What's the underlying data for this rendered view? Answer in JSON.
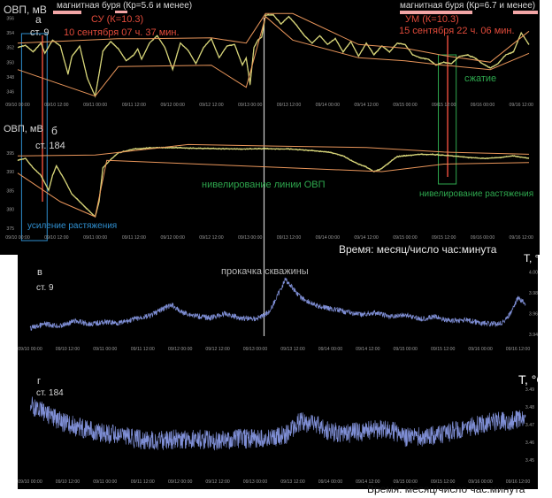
{
  "colors": {
    "background": "#000000",
    "orp_line": "#d8d67a",
    "temp_line": "#7f8fd6",
    "envelope": "#e8955a",
    "annotation_red": "#e04a3a",
    "annotation_green": "#2ea84e",
    "annotation_blue": "#2f8fd0",
    "storm_bar": "#f2a6a6",
    "label_light": "#d8d8d8",
    "tick_gray": "#9a9a9a"
  },
  "x_ticks": [
    "09/10 00:00",
    "09/10 12:00",
    "09/11 00:00",
    "09/11 12:00",
    "09/12 00:00",
    "09/12 12:00",
    "09/13 00:00",
    "09/13 12:00",
    "09/14 00:00",
    "09/14 12:00",
    "09/15 00:00",
    "09/15 12:00",
    "09/16 00:00",
    "09/16 12:00"
  ],
  "x_ticks_c": [
    "09/10 00:00",
    "09/10 12:00",
    "09/11 00:00",
    "09/11 12:00",
    "09/12 00:00",
    "09/12 12:00",
    "09/13 00:00",
    "09/13 12:00",
    "09/14 00:00",
    "09/14 12:00",
    "09/15 00:00",
    "09/15 12:00",
    "09/16 00:00",
    "09/16 12:00"
  ],
  "x_ticks_d": [
    "09/10 00:00",
    "09/10 12:00",
    "09/11 00:00",
    "09/11 12:00",
    "09/12 00:00",
    "09/12 12:00",
    "09/13 00:00",
    "09/13 12:00",
    "09/14 00:00",
    "09/14 12:00",
    "09/15 00:00",
    "09/15 12:00",
    "09/16 00:00",
    "09/16 12:00"
  ],
  "time_axis_label": "Время: месяц/число час:минута",
  "chart_data": [
    {
      "type": "line",
      "panel_letter": "а",
      "station": "ст. 9",
      "ylabel": "ОВП, мВ",
      "y_ticks": [
        346,
        348,
        350,
        352,
        354,
        356
      ],
      "ylim": [
        345,
        357
      ],
      "xlim": [
        0,
        6.6
      ],
      "series": [
        {
          "role": "data",
          "x": [
            0,
            0.1,
            0.2,
            0.3,
            0.35,
            0.45,
            0.55,
            0.65,
            0.7,
            0.8,
            0.9,
            1.0,
            1.05,
            1.1,
            1.2,
            1.3,
            1.4,
            1.5,
            1.55,
            1.6,
            1.7,
            1.8,
            1.9,
            2.0,
            2.05,
            2.1,
            2.2,
            2.3,
            2.4,
            2.5,
            2.6,
            2.7,
            2.8,
            2.9,
            2.95,
            3.0,
            3.05,
            3.1,
            3.15,
            3.2,
            3.3,
            3.4,
            3.5,
            3.6,
            3.7,
            3.8,
            3.9,
            4.0,
            4.1,
            4.2,
            4.3,
            4.4,
            4.5,
            4.6,
            4.7,
            4.8,
            4.9,
            5.0,
            5.1,
            5.2,
            5.3,
            5.4,
            5.5,
            5.6,
            5.7,
            5.8,
            5.9,
            6.0,
            6.1,
            6.2,
            6.3,
            6.4,
            6.5,
            6.6
          ],
          "y": [
            352.0,
            352.3,
            351.4,
            352.6,
            351.2,
            353.0,
            352.2,
            348.4,
            350.8,
            352.2,
            347.8,
            345.4,
            348.4,
            351.5,
            352.8,
            351.8,
            350.2,
            351.0,
            351.8,
            350.4,
            352.6,
            353.6,
            352.0,
            349.0,
            350.8,
            352.6,
            351.6,
            349.8,
            352.0,
            353.2,
            350.6,
            352.2,
            352.4,
            349.6,
            350.6,
            347.0,
            352.0,
            353.0,
            353.4,
            356.4,
            356.4,
            355.2,
            356.2,
            355.0,
            353.6,
            352.6,
            353.6,
            352.4,
            353.2,
            351.4,
            352.8,
            350.8,
            352.6,
            351.0,
            352.2,
            351.4,
            352.6,
            352.4,
            351.0,
            350.6,
            350.4,
            349.6,
            350.0,
            349.8,
            350.8,
            351.0,
            350.6,
            349.8,
            349.2,
            349.8,
            351.0,
            351.4,
            354.0,
            352.4
          ]
        },
        {
          "role": "envelope-upper",
          "x": [
            0,
            1.3,
            1.65,
            2.5,
            2.95,
            3.2,
            3.55,
            4.4,
            5.0,
            5.5,
            6.1,
            6.6
          ],
          "y": [
            352.6,
            353.2,
            353.2,
            353.3,
            352.6,
            356.6,
            356.6,
            352.4,
            351.9,
            350.9,
            350.0,
            354.2
          ]
        },
        {
          "role": "envelope-lower",
          "x": [
            0,
            1.0,
            1.3,
            2.5,
            2.95,
            3.2,
            3.55,
            4.4,
            5.0,
            5.5,
            6.1,
            6.6
          ],
          "y": [
            349.0,
            345.4,
            349.4,
            349.6,
            346.6,
            356.2,
            353.0,
            350.6,
            350.2,
            349.6,
            349.0,
            351.2
          ]
        }
      ],
      "annotations": {
        "storm1": "магнитная буря (Кр=5.6 и менее)",
        "storm2": "магнитная буря (Кр=6.7 и менее)",
        "su": "СУ (К=10.3)",
        "su_date": "10 сентября 07 ч. 37 мин.",
        "um": "УМ (К=10.3)",
        "um_date": "15 сентября 22 ч. 06 мин.",
        "compression": "сжатие"
      }
    },
    {
      "type": "line",
      "panel_letter": "б",
      "station": "ст. 184",
      "ylabel": "ОВП, мВ",
      "y_ticks": [
        375,
        380,
        385,
        390,
        395
      ],
      "ylim": [
        374,
        398
      ],
      "xlim": [
        0,
        6.6
      ],
      "series": [
        {
          "role": "data",
          "x": [
            0,
            0.1,
            0.2,
            0.3,
            0.35,
            0.4,
            0.45,
            0.5,
            0.6,
            0.7,
            0.8,
            0.9,
            1.0,
            1.05,
            1.1,
            1.2,
            1.3,
            1.4,
            1.5,
            1.7,
            2.0,
            2.3,
            2.6,
            2.9,
            3.2,
            3.5,
            3.8,
            4.0,
            4.1,
            4.2,
            4.3,
            4.4,
            4.5,
            4.6,
            4.7,
            4.8,
            4.9,
            5.0,
            5.2,
            5.4,
            5.6,
            5.8,
            6.0,
            6.2,
            6.4,
            6.6
          ],
          "y": [
            393.0,
            393.5,
            391.0,
            389.0,
            387.0,
            385.0,
            389.0,
            391.5,
            388.0,
            384.0,
            382.0,
            380.0,
            378.0,
            382.0,
            391.0,
            393.2,
            395.0,
            395.5,
            396.0,
            396.3,
            396.4,
            396.2,
            396.1,
            396.0,
            396.1,
            396.0,
            395.6,
            395.2,
            394.8,
            394.2,
            393.0,
            392.0,
            391.2,
            390.0,
            390.8,
            392.5,
            394.0,
            394.2,
            394.6,
            394.5,
            394.2,
            393.8,
            393.5,
            393.7,
            394.2,
            393.5
          ]
        },
        {
          "role": "envelope-upper",
          "x": [
            0,
            1.0,
            2.2,
            3.3,
            4.5,
            5.5,
            6.6
          ],
          "y": [
            394.2,
            394.4,
            397.2,
            396.8,
            396.4,
            395.2,
            394.6
          ]
        },
        {
          "role": "envelope-lower",
          "x": [
            0,
            0.55,
            1.0,
            1.15,
            4.7,
            5.5,
            6.6
          ],
          "y": [
            389.6,
            382.0,
            378.0,
            393.0,
            390.0,
            392.0,
            392.4
          ]
        }
      ],
      "annotations": {
        "amplification": "усиление растяжения",
        "leveling": "нивелирование линии ОВП",
        "leveling_stretch": "нивелирование растяжения"
      }
    },
    {
      "type": "line",
      "panel_letter": "в",
      "station": "ст. 9",
      "ylabel": "T, °C",
      "y_ticks": [
        "3.94",
        "3.96",
        "3.98",
        "4.00"
      ],
      "ylim": [
        3.935,
        4.01
      ],
      "xlim": [
        0,
        6.6
      ],
      "series": [
        {
          "role": "data",
          "x": [
            0,
            0.2,
            0.4,
            0.6,
            0.8,
            1.0,
            1.2,
            1.4,
            1.6,
            1.8,
            1.9,
            2.0,
            2.2,
            2.4,
            2.6,
            2.8,
            3.0,
            3.1,
            3.2,
            3.3,
            3.4,
            3.5,
            3.6,
            3.8,
            4.0,
            4.2,
            4.4,
            4.6,
            4.8,
            5.0,
            5.2,
            5.4,
            5.6,
            5.8,
            6.0,
            6.2,
            6.3,
            6.4,
            6.5,
            6.6
          ],
          "y": [
            3.946,
            3.95,
            3.948,
            3.953,
            3.95,
            3.952,
            3.951,
            3.955,
            3.958,
            3.966,
            3.968,
            3.962,
            3.958,
            3.956,
            3.96,
            3.956,
            3.955,
            3.958,
            3.963,
            3.978,
            3.993,
            3.985,
            3.976,
            3.968,
            3.965,
            3.962,
            3.959,
            3.961,
            3.957,
            3.959,
            3.955,
            3.957,
            3.953,
            3.954,
            3.951,
            3.95,
            3.952,
            3.96,
            3.975,
            3.97
          ]
        }
      ],
      "annotations": {
        "pumping": "прокачка скважины"
      }
    },
    {
      "type": "line",
      "panel_letter": "г",
      "station": "ст. 184",
      "ylabel": "T, °C",
      "y_ticks": [
        "3.45",
        "3.46",
        "3.47",
        "3.48",
        "3.49"
      ],
      "ylim": [
        3.445,
        3.493
      ],
      "xlim": [
        0,
        6.6
      ],
      "series": [
        {
          "role": "data",
          "x": [
            0,
            0.2,
            0.4,
            0.6,
            0.8,
            1.0,
            1.2,
            1.4,
            1.6,
            1.8,
            2.0,
            2.2,
            2.4,
            2.6,
            2.8,
            3.0,
            3.2,
            3.4,
            3.5,
            3.6,
            3.8,
            4.0,
            4.2,
            4.4,
            4.6,
            4.8,
            5.0,
            5.2,
            5.4,
            5.6,
            5.8,
            6.0,
            6.2,
            6.4,
            6.6
          ],
          "y": [
            3.481,
            3.477,
            3.472,
            3.469,
            3.467,
            3.465,
            3.464,
            3.462,
            3.461,
            3.461,
            3.462,
            3.462,
            3.461,
            3.461,
            3.462,
            3.462,
            3.462,
            3.464,
            3.468,
            3.472,
            3.47,
            3.466,
            3.465,
            3.466,
            3.467,
            3.467,
            3.463,
            3.463,
            3.464,
            3.466,
            3.468,
            3.47,
            3.472,
            3.472,
            3.474
          ]
        }
      ]
    }
  ]
}
